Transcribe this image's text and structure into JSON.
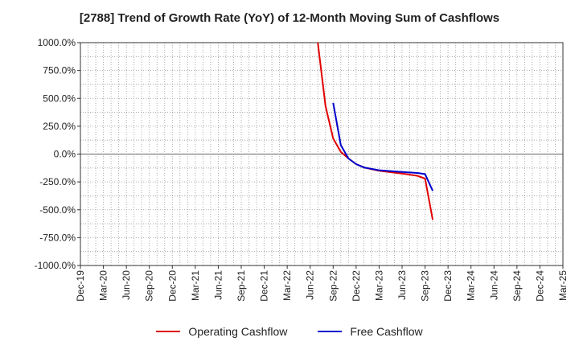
{
  "chart_data": {
    "type": "line",
    "title": "[2788]  Trend of Growth Rate (YoY) of 12-Month Moving Sum of Cashflows",
    "xlabel": "",
    "ylabel": "",
    "ylim": [
      -1000,
      1000
    ],
    "yticks": [
      1000,
      750,
      500,
      250,
      0,
      -250,
      -500,
      -750,
      -1000
    ],
    "ytick_labels": [
      "1000.0%",
      "750.0%",
      "500.0%",
      "250.0%",
      "0.0%",
      "-250.0%",
      "-500.0%",
      "-750.0%",
      "-1000.0%"
    ],
    "x_start": "2019-12",
    "x_end": "2025-03",
    "xtick_labels": [
      "Dec-19",
      "Mar-20",
      "Jun-20",
      "Sep-20",
      "Dec-20",
      "Mar-21",
      "Jun-21",
      "Sep-21",
      "Dec-21",
      "Mar-22",
      "Jun-22",
      "Sep-22",
      "Dec-22",
      "Mar-23",
      "Jun-23",
      "Sep-23",
      "Dec-23",
      "Mar-24",
      "Jun-24",
      "Sep-24",
      "Dec-24",
      "Mar-25"
    ],
    "grid": true,
    "legend_position": "bottom",
    "series": [
      {
        "name": "Operating Cashflow",
        "color": "#e00000",
        "points": [
          [
            "2022-07",
            1000
          ],
          [
            "2022-08",
            430
          ],
          [
            "2022-09",
            140
          ],
          [
            "2022-10",
            20
          ],
          [
            "2022-11",
            -40
          ],
          [
            "2022-12",
            -90
          ],
          [
            "2023-01",
            -120
          ],
          [
            "2023-03",
            -150
          ],
          [
            "2023-06",
            -175
          ],
          [
            "2023-08",
            -195
          ],
          [
            "2023-09",
            -220
          ],
          [
            "2023-10",
            -590
          ]
        ]
      },
      {
        "name": "Free Cashflow",
        "color": "#0000cc",
        "points": [
          [
            "2022-09",
            460
          ],
          [
            "2022-10",
            80
          ],
          [
            "2022-11",
            -40
          ],
          [
            "2022-12",
            -90
          ],
          [
            "2023-01",
            -120
          ],
          [
            "2023-03",
            -145
          ],
          [
            "2023-06",
            -160
          ],
          [
            "2023-08",
            -170
          ],
          [
            "2023-09",
            -180
          ],
          [
            "2023-10",
            -330
          ]
        ]
      }
    ]
  }
}
